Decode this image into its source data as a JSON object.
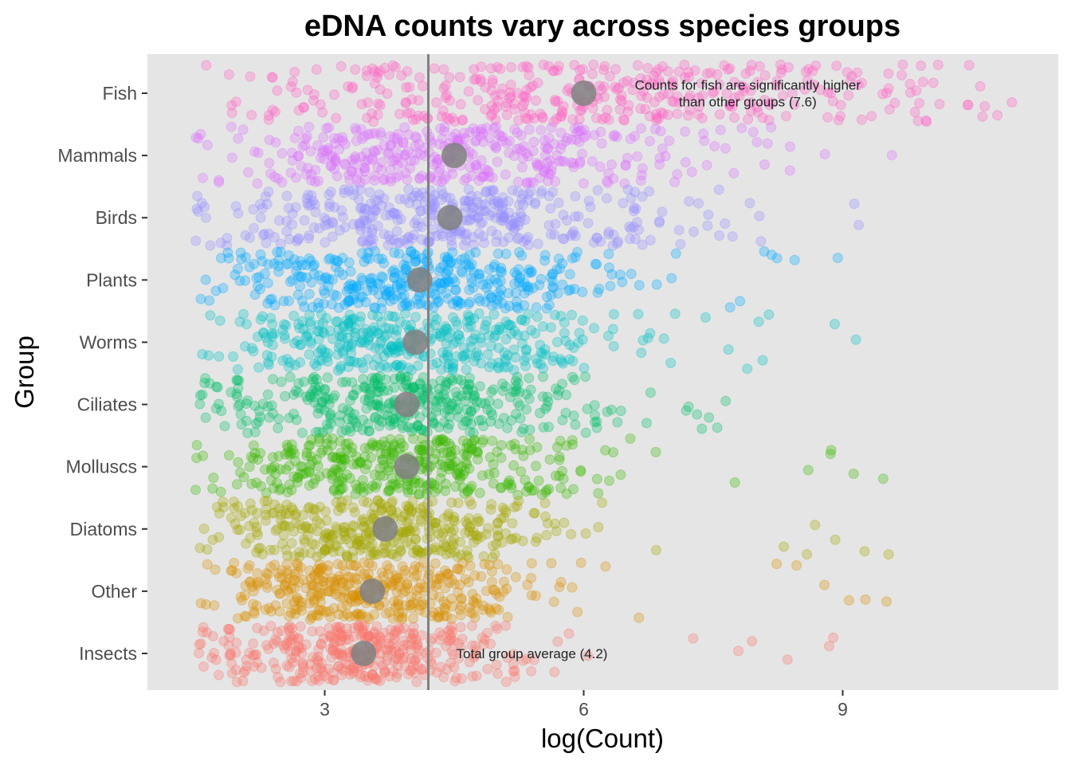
{
  "chart_data": {
    "type": "scatter",
    "title": "eDNA counts vary across species groups",
    "xlabel": "log(Count)",
    "ylabel": "Group",
    "xlim": [
      1.0,
      11.5
    ],
    "x_ticks": [
      "3",
      "6",
      "9"
    ],
    "grid": false,
    "legend": "none",
    "categories": [
      "Fish",
      "Mammals",
      "Birds",
      "Plants",
      "Worms",
      "Ciliates",
      "Molluscs",
      "Diatoms",
      "Other",
      "Insects"
    ],
    "series": [
      {
        "group": "Fish",
        "color": "#FF61C3",
        "mean": 6.0,
        "x_range": [
          1.5,
          11.1
        ]
      },
      {
        "group": "Mammals",
        "color": "#DB72FB",
        "mean": 4.5,
        "x_range": [
          1.5,
          9.6
        ]
      },
      {
        "group": "Birds",
        "color": "#9590FF",
        "mean": 4.45,
        "x_range": [
          1.5,
          9.2
        ]
      },
      {
        "group": "Plants",
        "color": "#00A9FF",
        "mean": 4.1,
        "x_range": [
          1.5,
          9.3
        ]
      },
      {
        "group": "Worms",
        "color": "#00BFC4",
        "mean": 4.05,
        "x_range": [
          1.5,
          9.5
        ]
      },
      {
        "group": "Ciliates",
        "color": "#00BE67",
        "mean": 3.95,
        "x_range": [
          1.5,
          8.0
        ]
      },
      {
        "group": "Molluscs",
        "color": "#39B600",
        "mean": 3.95,
        "x_range": [
          1.5,
          9.7
        ]
      },
      {
        "group": "Diatoms",
        "color": "#A3A500",
        "mean": 3.7,
        "x_range": [
          1.5,
          10.0
        ]
      },
      {
        "group": "Other",
        "color": "#D89000",
        "mean": 3.55,
        "x_range": [
          1.5,
          10.0
        ]
      },
      {
        "group": "Insects",
        "color": "#F8766D",
        "mean": 3.45,
        "x_range": [
          1.5,
          9.1
        ]
      }
    ],
    "reference_line": {
      "x": 4.2,
      "color": "#808080"
    },
    "annotations": [
      {
        "text_lines": [
          "Counts for fish are significantly higher",
          "than other groups (7.6)"
        ],
        "x": 7.9,
        "group": "Fish"
      },
      {
        "text_lines": [
          "Total group average (4.2)"
        ],
        "x": 5.4,
        "group": "Insects"
      }
    ],
    "mean_marker_color": "#808080",
    "panel_background": "#E5E5E5"
  }
}
